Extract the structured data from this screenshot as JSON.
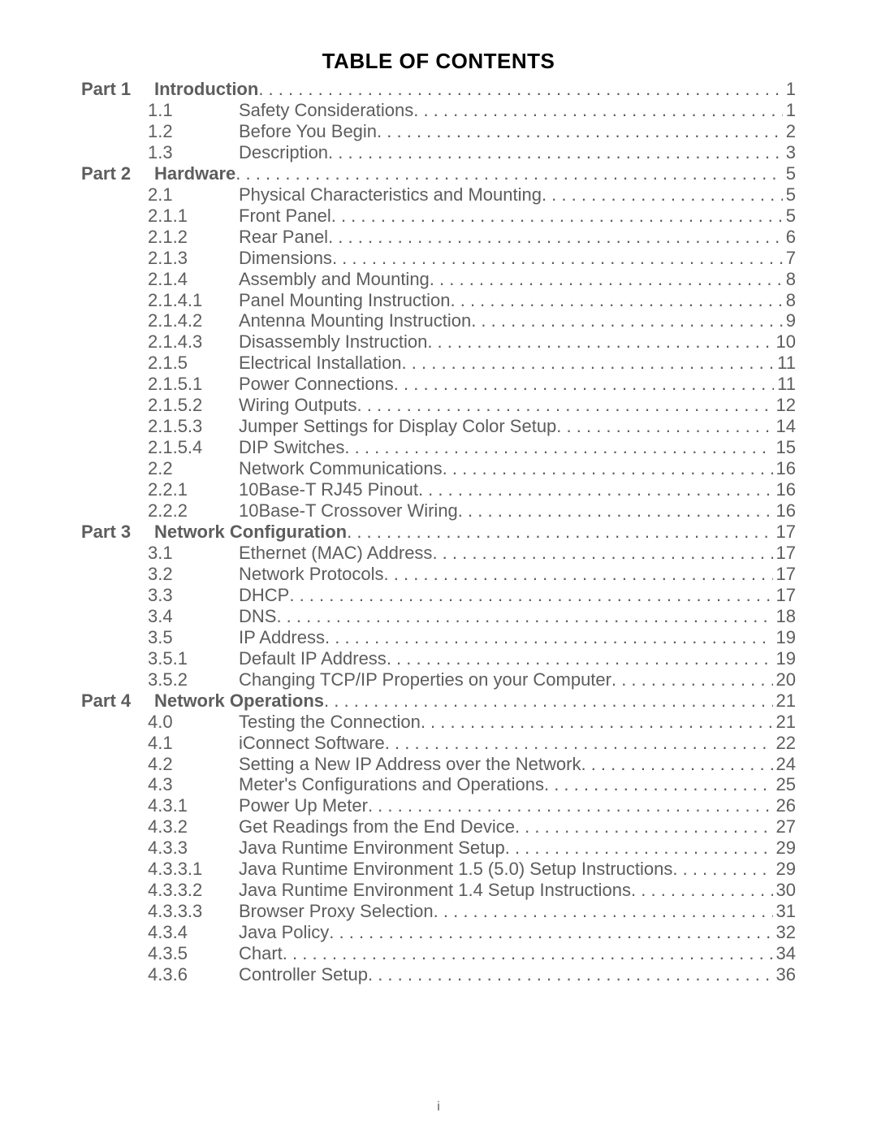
{
  "title": "TABLE OF CONTENTS",
  "title_fontsize": 26,
  "body_fontsize": 22,
  "text_color": "#5d5d5d",
  "title_color": "#000000",
  "background_color": "#ffffff",
  "footer": "i",
  "entries": [
    {
      "part": "Part 1",
      "num": "",
      "title": "Introduction",
      "page": "1",
      "bold": true,
      "merged": true
    },
    {
      "part": "",
      "num": "1.1",
      "title": "Safety Considerations",
      "page": "1",
      "bold": false
    },
    {
      "part": "",
      "num": "1.2",
      "title": "Before You Begin",
      "page": "2",
      "bold": false
    },
    {
      "part": "",
      "num": "1.3",
      "title": "Description",
      "page": "3",
      "bold": false
    },
    {
      "part": "Part 2",
      "num": "",
      "title": "Hardware",
      "page": "5",
      "bold": true,
      "merged": true
    },
    {
      "part": "",
      "num": "2.1",
      "title": "Physical Characteristics and Mounting",
      "page": "5",
      "bold": false
    },
    {
      "part": "",
      "num": "2.1.1",
      "title": "Front Panel",
      "page": "5",
      "bold": false
    },
    {
      "part": "",
      "num": "2.1.2",
      "title": "Rear Panel",
      "page": "6",
      "bold": false
    },
    {
      "part": "",
      "num": "2.1.3",
      "title": "Dimensions",
      "page": "7",
      "bold": false
    },
    {
      "part": "",
      "num": "2.1.4",
      "title": "Assembly and Mounting",
      "page": "8",
      "bold": false
    },
    {
      "part": "",
      "num": "2.1.4.1",
      "title": "Panel Mounting Instruction",
      "page": "8",
      "bold": false
    },
    {
      "part": "",
      "num": "2.1.4.2",
      "title": "Antenna Mounting Instruction",
      "page": "9",
      "bold": false
    },
    {
      "part": "",
      "num": "2.1.4.3",
      "title": "Disassembly Instruction",
      "page": "10",
      "bold": false
    },
    {
      "part": "",
      "num": "2.1.5",
      "title": "Electrical Installation",
      "page": "11",
      "bold": false
    },
    {
      "part": "",
      "num": "2.1.5.1",
      "title": "Power Connections",
      "page": "11",
      "bold": false
    },
    {
      "part": "",
      "num": "2.1.5.2",
      "title": "Wiring Outputs",
      "page": "12",
      "bold": false
    },
    {
      "part": "",
      "num": "2.1.5.3",
      "title": "Jumper Settings for Display Color Setup",
      "page": "14",
      "bold": false
    },
    {
      "part": "",
      "num": "2.1.5.4",
      "title": "DIP Switches",
      "page": "15",
      "bold": false
    },
    {
      "part": "",
      "num": "2.2",
      "title": "Network Communications",
      "page": "16",
      "bold": false
    },
    {
      "part": "",
      "num": "2.2.1",
      "title": "10Base-T RJ45 Pinout",
      "page": "16",
      "bold": false
    },
    {
      "part": "",
      "num": "2.2.2",
      "title": "10Base-T Crossover Wiring",
      "page": "16",
      "bold": false
    },
    {
      "part": "Part 3",
      "num": "",
      "title": "Network Configuration",
      "page": "17",
      "bold": true,
      "merged": true
    },
    {
      "part": "",
      "num": "3.1",
      "title": "Ethernet (MAC) Address",
      "page": "17",
      "bold": false
    },
    {
      "part": "",
      "num": "3.2",
      "title": "Network Protocols",
      "page": "17",
      "bold": false
    },
    {
      "part": "",
      "num": "3.3",
      "title": "DHCP",
      "page": "17",
      "bold": false
    },
    {
      "part": "",
      "num": "3.4",
      "title": "DNS",
      "page": "18",
      "bold": false
    },
    {
      "part": "",
      "num": "3.5",
      "title": "IP Address",
      "page": "19",
      "bold": false
    },
    {
      "part": "",
      "num": "3.5.1",
      "title": "Default IP Address",
      "page": "19",
      "bold": false
    },
    {
      "part": "",
      "num": "3.5.2",
      "title": "Changing TCP/IP Properties on your Computer",
      "page": "20",
      "bold": false
    },
    {
      "part": "Part 4",
      "num": "",
      "title": "Network Operations",
      "page": "21",
      "bold": true,
      "merged": true
    },
    {
      "part": "",
      "num": "4.0",
      "title": "Testing the Connection",
      "page": "21",
      "bold": false
    },
    {
      "part": "",
      "num": "4.1",
      "title": "iConnect Software",
      "page": "22",
      "bold": false
    },
    {
      "part": "",
      "num": "4.2",
      "title": "Setting a New IP Address over the Network",
      "page": "24",
      "bold": false
    },
    {
      "part": "",
      "num": "4.3",
      "title": "Meter's Configurations and Operations",
      "page": "25",
      "bold": false
    },
    {
      "part": "",
      "num": "4.3.1",
      "title": "Power Up Meter",
      "page": "26",
      "bold": false
    },
    {
      "part": "",
      "num": "4.3.2",
      "title": "Get Readings from the End Device",
      "page": "27",
      "bold": false
    },
    {
      "part": "",
      "num": "4.3.3",
      "title": "Java Runtime Environment Setup",
      "page": "29",
      "bold": false
    },
    {
      "part": "",
      "num": "4.3.3.1",
      "title": "Java Runtime Environment 1.5 (5.0) Setup Instructions",
      "page": "29",
      "bold": false
    },
    {
      "part": "",
      "num": "4.3.3.2",
      "title": "Java Runtime Environment 1.4 Setup Instructions",
      "page": "30",
      "bold": false
    },
    {
      "part": "",
      "num": "4.3.3.3",
      "title": "Browser Proxy Selection",
      "page": "31",
      "bold": false
    },
    {
      "part": "",
      "num": "4.3.4",
      "title": "Java Policy",
      "page": "32",
      "bold": false
    },
    {
      "part": "",
      "num": "4.3.5",
      "title": "Chart",
      "page": "34",
      "bold": false
    },
    {
      "part": "",
      "num": "4.3.6",
      "title": "Controller Setup",
      "page": "36",
      "bold": false
    }
  ]
}
